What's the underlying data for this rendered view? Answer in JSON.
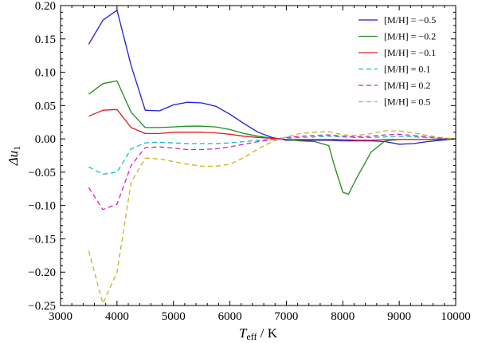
{
  "chart_data": {
    "type": "line",
    "title": "",
    "xlabel": "T_eff / K",
    "xlabel_parts": {
      "symbol": "T",
      "subscript": "eff",
      "unit": " /  K"
    },
    "ylabel_parts": {
      "symbol": "Δu",
      "subscript": "1"
    },
    "xlim": [
      3000,
      10000
    ],
    "ylim": [
      -0.25,
      0.2
    ],
    "xticks": [
      3000,
      4000,
      5000,
      6000,
      7000,
      8000,
      9000,
      10000
    ],
    "yticks": [
      -0.25,
      -0.2,
      -0.15,
      -0.1,
      -0.05,
      0.0,
      0.05,
      0.1,
      0.15,
      0.2
    ],
    "xtick_labels": [
      "3000",
      "4000",
      "5000",
      "6000",
      "7000",
      "8000",
      "9000",
      "10000"
    ],
    "ytick_labels": [
      "−0.25",
      "−0.20",
      "−0.15",
      "−0.10",
      "−0.05",
      "0.00",
      "0.05",
      "0.10",
      "0.15",
      "0.20"
    ],
    "legend_position": "top-right",
    "grid": false,
    "series": [
      {
        "name": "[M/H] = −0.5",
        "color": "#1f1fd6",
        "dash": "solid",
        "x": [
          3500,
          3750,
          4000,
          4250,
          4500,
          4750,
          5000,
          5250,
          5500,
          5750,
          6000,
          6250,
          6500,
          6750,
          7000,
          7250,
          7500,
          7750,
          8000,
          8250,
          8500,
          8750,
          9000,
          9250,
          9500,
          9750,
          10000
        ],
        "y": [
          0.142,
          0.178,
          0.193,
          0.11,
          0.043,
          0.042,
          0.051,
          0.055,
          0.054,
          0.049,
          0.037,
          0.023,
          0.01,
          0.002,
          -0.002,
          -0.002,
          -0.002,
          -0.002,
          -0.003,
          -0.003,
          -0.003,
          -0.004,
          -0.008,
          -0.007,
          -0.004,
          -0.002,
          0.0
        ]
      },
      {
        "name": "[M/H] = −0.2",
        "color": "#1f8a1f",
        "dash": "solid",
        "x": [
          3500,
          3750,
          4000,
          4250,
          4500,
          4750,
          5000,
          5250,
          5500,
          5750,
          6000,
          6250,
          6500,
          6750,
          7000,
          7250,
          7500,
          7750,
          7850,
          8000,
          8100,
          8250,
          8500,
          8750,
          9000,
          9250,
          9500,
          9750,
          10000
        ],
        "y": [
          0.067,
          0.083,
          0.087,
          0.04,
          0.017,
          0.017,
          0.018,
          0.019,
          0.019,
          0.018,
          0.014,
          0.008,
          0.004,
          0.001,
          -0.001,
          -0.003,
          -0.004,
          -0.01,
          -0.04,
          -0.08,
          -0.083,
          -0.058,
          -0.02,
          -0.003,
          -0.001,
          -0.001,
          -0.001,
          -0.001,
          0.0
        ]
      },
      {
        "name": "[M/H] = −0.1",
        "color": "#dc1f1f",
        "dash": "solid",
        "x": [
          3500,
          3750,
          4000,
          4250,
          4500,
          4750,
          5000,
          5250,
          5500,
          5750,
          6000,
          6250,
          6500,
          6750,
          7000,
          7250,
          7500,
          7750,
          8000,
          8250,
          8500,
          8750,
          9000,
          9250,
          9500,
          9750,
          10000
        ],
        "y": [
          0.034,
          0.043,
          0.044,
          0.017,
          0.008,
          0.008,
          0.01,
          0.01,
          0.01,
          0.009,
          0.007,
          0.004,
          0.002,
          0.001,
          -0.001,
          -0.001,
          -0.001,
          -0.001,
          -0.001,
          -0.002,
          -0.002,
          -0.001,
          -0.001,
          -0.001,
          -0.001,
          0.0,
          0.0
        ]
      },
      {
        "name": "[M/H] =  0.1",
        "color": "#17b8c8",
        "dash": "dashed",
        "x": [
          3500,
          3750,
          4000,
          4250,
          4500,
          4750,
          5000,
          5250,
          5500,
          5750,
          6000,
          6250,
          6500,
          6750,
          7000,
          7250,
          7500,
          7750,
          8000,
          8250,
          8500,
          8750,
          9000,
          9250,
          9500,
          9750,
          10000
        ],
        "y": [
          -0.042,
          -0.053,
          -0.05,
          -0.015,
          -0.006,
          -0.005,
          -0.006,
          -0.007,
          -0.007,
          -0.007,
          -0.006,
          -0.004,
          -0.002,
          -0.001,
          0.001,
          0.002,
          0.003,
          0.004,
          0.003,
          0.002,
          0.002,
          0.003,
          0.004,
          0.003,
          0.002,
          0.001,
          0.0
        ]
      },
      {
        "name": "[M/H] =  0.2",
        "color": "#d21fcf",
        "dash": "dashed",
        "x": [
          3500,
          3750,
          4000,
          4250,
          4500,
          4750,
          5000,
          5250,
          5500,
          5750,
          6000,
          6250,
          6500,
          6750,
          7000,
          7250,
          7500,
          7750,
          8000,
          8250,
          8500,
          8750,
          9000,
          9250,
          9500,
          9750,
          10000
        ],
        "y": [
          -0.073,
          -0.106,
          -0.098,
          -0.04,
          -0.013,
          -0.012,
          -0.014,
          -0.016,
          -0.016,
          -0.015,
          -0.012,
          -0.008,
          -0.004,
          -0.001,
          0.002,
          0.004,
          0.005,
          0.006,
          0.004,
          0.003,
          0.004,
          0.006,
          0.007,
          0.005,
          0.003,
          0.001,
          0.0
        ]
      },
      {
        "name": "[M/H] =  0.5",
        "color": "#c8b41a",
        "dash": "dashed",
        "x": [
          3500,
          3750,
          4000,
          4250,
          4500,
          4750,
          5000,
          5250,
          5500,
          5750,
          6000,
          6250,
          6500,
          6750,
          7000,
          7250,
          7500,
          7750,
          8000,
          8250,
          8500,
          8750,
          9000,
          9250,
          9500,
          9750,
          10000
        ],
        "y": [
          -0.168,
          -0.247,
          -0.2,
          -0.065,
          -0.029,
          -0.03,
          -0.034,
          -0.038,
          -0.041,
          -0.041,
          -0.038,
          -0.028,
          -0.015,
          -0.004,
          0.003,
          0.008,
          0.01,
          0.011,
          0.006,
          0.005,
          0.008,
          0.012,
          0.012,
          0.009,
          0.005,
          0.002,
          0.0
        ]
      }
    ]
  }
}
